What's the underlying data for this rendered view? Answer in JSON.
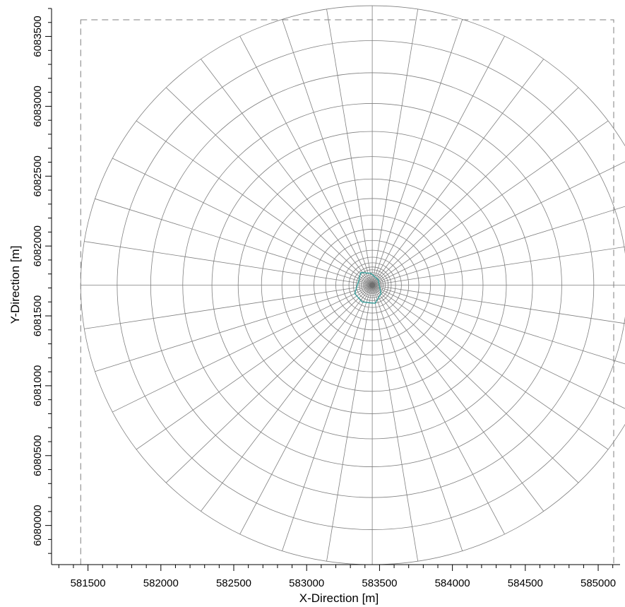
{
  "chart_data": {
    "type": "mesh",
    "xlabel": "X-Direction [m]",
    "ylabel": "Y-Direction [m]",
    "xlim": [
      581250,
      585150
    ],
    "ylim": [
      6079720,
      6083700
    ],
    "x_ticks": [
      581500,
      582000,
      582500,
      583000,
      583500,
      584000,
      584500,
      585000
    ],
    "y_ticks": [
      6080000,
      6080500,
      6081000,
      6081500,
      6082000,
      6082500,
      6083000,
      6083500
    ],
    "x_minor_step": 100,
    "y_minor_step": 100,
    "mesh": {
      "center": [
        583450,
        6081720
      ],
      "outer_radius": 2000,
      "ring_radii": [
        20,
        30,
        40,
        50,
        60,
        75,
        90,
        110,
        130,
        160,
        200,
        250,
        320,
        400,
        500,
        620,
        760,
        920,
        1100,
        1300,
        1520,
        1750,
        2000
      ],
      "radial_line_count": 40
    },
    "domain_box": {
      "x": [
        581450,
        585450
      ],
      "y": [
        6079720,
        6083720
      ]
    },
    "structure_outline": [
      [
        583370,
        6081810
      ],
      [
        583440,
        6081805
      ],
      [
        583490,
        6081760
      ],
      [
        583510,
        6081660
      ],
      [
        583470,
        6081590
      ],
      [
        583380,
        6081600
      ],
      [
        583330,
        6081660
      ],
      [
        583360,
        6081760
      ],
      [
        583370,
        6081810
      ]
    ],
    "colors": {
      "mesh": "#7f7f7f",
      "domain_box": "#7f7f7f",
      "structure": "#2f9e9a",
      "axis": "#000000"
    }
  }
}
